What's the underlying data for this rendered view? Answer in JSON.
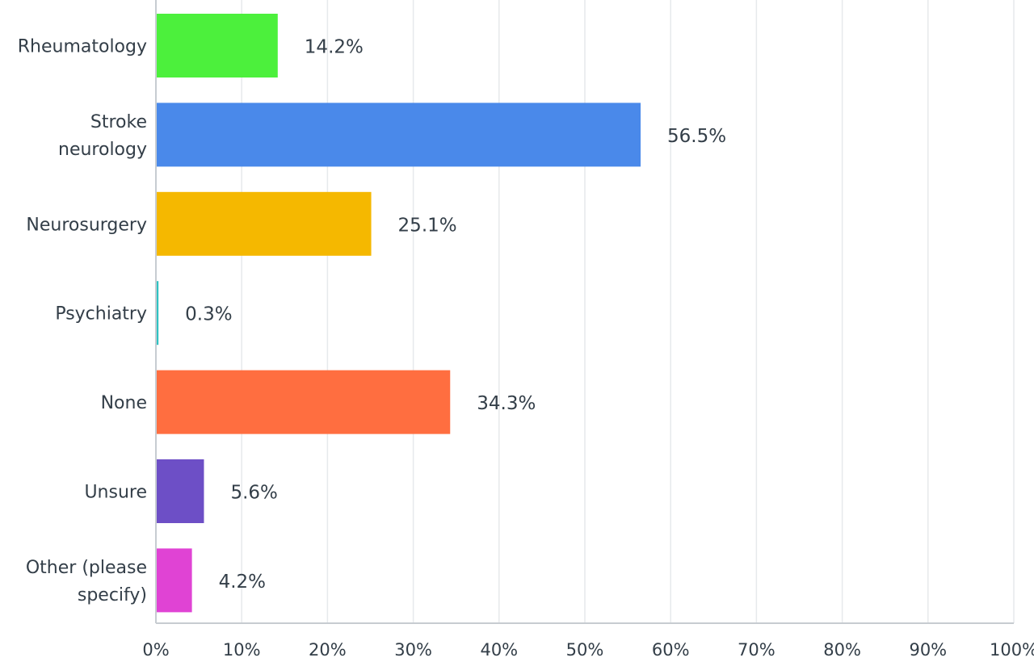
{
  "chart_data": {
    "type": "bar",
    "orientation": "horizontal",
    "categories": [
      [
        "Rheumatology"
      ],
      [
        "Stroke",
        "neurology"
      ],
      [
        "Neurosurgery"
      ],
      [
        "Psychiatry"
      ],
      [
        "None"
      ],
      [
        "Unsure"
      ],
      [
        "Other (please",
        "specify)"
      ]
    ],
    "values": [
      14.2,
      56.5,
      25.1,
      0.3,
      34.3,
      5.6,
      4.2
    ],
    "value_labels": [
      "14.2%",
      "56.5%",
      "25.1%",
      "0.3%",
      "34.3%",
      "5.6%",
      "4.2%"
    ],
    "colors": [
      "#4cf03c",
      "#4a89ea",
      "#f5b800",
      "#2fc2c2",
      "#ff6e40",
      "#6d4fc6",
      "#e043d4"
    ],
    "x_ticks": [
      "0%",
      "10%",
      "20%",
      "30%",
      "40%",
      "50%",
      "60%",
      "70%",
      "80%",
      "90%",
      "100%"
    ],
    "xlim": [
      0,
      100
    ],
    "grid": true,
    "legend": "none",
    "title": "",
    "xlabel": "",
    "ylabel": ""
  }
}
